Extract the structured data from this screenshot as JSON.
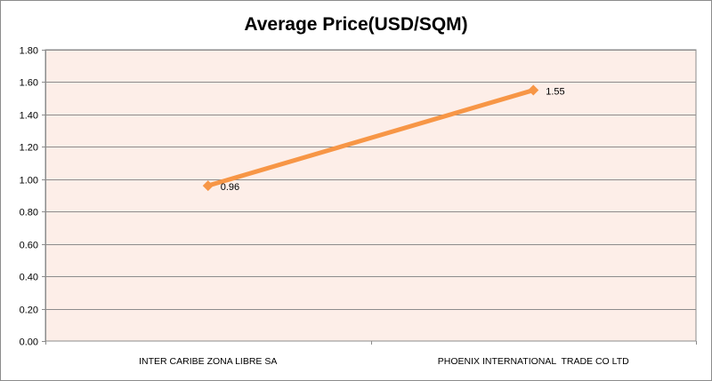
{
  "chart_data": {
    "type": "line",
    "title": "Average Price(USD/SQM)",
    "categories": [
      "INTER CARIBE ZONA LIBRE SA",
      "PHOENIX INTERNATIONAL  TRADE CO LTD"
    ],
    "series": [
      {
        "values": [
          0.96,
          1.55
        ],
        "data_labels": [
          "0.96",
          "1.55"
        ],
        "color": "#f79646"
      }
    ],
    "y_ticks": [
      "0.00",
      "0.20",
      "0.40",
      "0.60",
      "0.80",
      "1.00",
      "1.20",
      "1.40",
      "1.60",
      "1.80"
    ],
    "ylim": [
      0,
      1.8
    ],
    "grid": true,
    "legend": "none",
    "plot_background": "#fdeee8",
    "marker": "diamond"
  }
}
